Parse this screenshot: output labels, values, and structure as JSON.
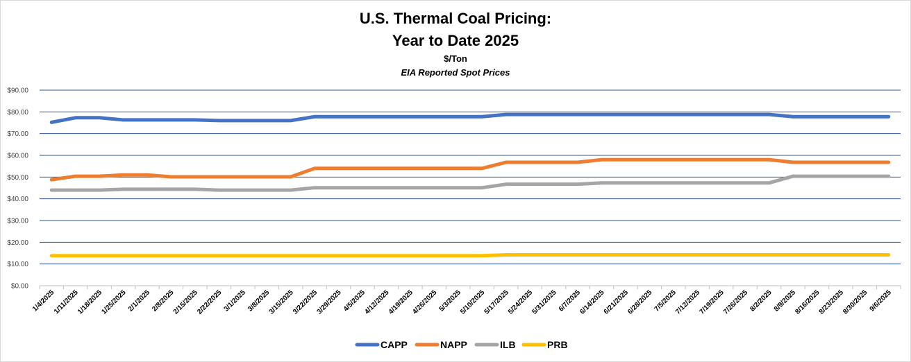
{
  "chart_data": {
    "type": "line",
    "title": "U.S. Thermal Coal Pricing:",
    "title_line2": "Year to Date 2025",
    "subtitle": "$/Ton",
    "note": "EIA Reported Spot Prices",
    "xlabel": "",
    "ylabel": "",
    "ylim": [
      0,
      90
    ],
    "y_ticks": [
      "$0.00",
      "$10.00",
      "$20.00",
      "$30.00",
      "$40.00",
      "$50.00",
      "$60.00",
      "$70.00",
      "$80.00",
      "$90.00"
    ],
    "grid": true,
    "legend_position": "bottom",
    "categories": [
      "1/4/2025",
      "1/11/2025",
      "1/18/2025",
      "1/25/2025",
      "2/1/2025",
      "2/8/2025",
      "2/15/2025",
      "2/22/2025",
      "3/1/2025",
      "3/8/2025",
      "3/15/2025",
      "3/22/2025",
      "3/29/2025",
      "4/5/2025",
      "4/12/2025",
      "4/19/2025",
      "4/26/2025",
      "5/3/2025",
      "5/10/2025",
      "5/17/2025",
      "5/24/2025",
      "5/31/2025",
      "6/7/2025",
      "6/14/2025",
      "6/21/2025",
      "6/28/2025",
      "7/5/2025",
      "7/12/2025",
      "7/19/2025",
      "7/26/2025",
      "8/2/2025",
      "8/9/2025",
      "8/16/2025",
      "8/23/2025",
      "8/30/2025",
      "9/6/2025"
    ],
    "series": [
      {
        "name": "CAPP",
        "color": "#4472C4",
        "values": [
          75.2,
          77.3,
          77.3,
          76.3,
          76.3,
          76.3,
          76.3,
          76.0,
          76.0,
          76.0,
          76.0,
          77.8,
          77.8,
          77.8,
          77.8,
          77.8,
          77.8,
          77.8,
          77.8,
          78.8,
          78.8,
          78.8,
          78.8,
          78.8,
          78.8,
          78.8,
          78.8,
          78.8,
          78.8,
          78.8,
          78.8,
          77.8,
          77.8,
          77.8,
          77.8,
          77.8
        ]
      },
      {
        "name": "NAPP",
        "color": "#ED7D31",
        "values": [
          48.8,
          50.4,
          50.4,
          51.0,
          51.0,
          50.1,
          50.1,
          50.1,
          50.1,
          50.1,
          50.1,
          54.0,
          54.0,
          54.0,
          54.0,
          54.0,
          54.0,
          54.0,
          54.0,
          56.8,
          56.8,
          56.8,
          56.8,
          58.0,
          58.0,
          58.0,
          58.0,
          58.0,
          58.0,
          58.0,
          58.0,
          56.8,
          56.8,
          56.8,
          56.8,
          56.8
        ]
      },
      {
        "name": "ILB",
        "color": "#A5A5A5",
        "values": [
          44.0,
          44.0,
          44.0,
          44.4,
          44.4,
          44.4,
          44.4,
          44.0,
          44.0,
          44.0,
          44.0,
          45.1,
          45.1,
          45.1,
          45.1,
          45.1,
          45.1,
          45.1,
          45.1,
          46.7,
          46.7,
          46.7,
          46.7,
          47.3,
          47.3,
          47.3,
          47.3,
          47.3,
          47.3,
          47.3,
          47.3,
          50.4,
          50.4,
          50.4,
          50.4,
          50.4
        ]
      },
      {
        "name": "PRB",
        "color": "#FFC000",
        "values": [
          13.8,
          13.8,
          13.8,
          13.8,
          13.8,
          13.8,
          13.8,
          13.8,
          13.8,
          13.8,
          13.8,
          13.8,
          13.8,
          13.8,
          13.8,
          13.8,
          13.8,
          13.8,
          13.8,
          14.2,
          14.2,
          14.2,
          14.2,
          14.2,
          14.2,
          14.2,
          14.2,
          14.2,
          14.2,
          14.2,
          14.2,
          14.2,
          14.2,
          14.2,
          14.2,
          14.2
        ]
      }
    ]
  }
}
